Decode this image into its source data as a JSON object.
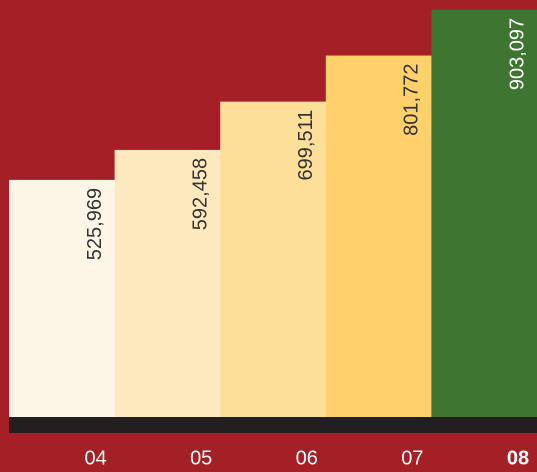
{
  "chart_data": {
    "type": "bar",
    "categories": [
      "04",
      "05",
      "06",
      "07",
      "08"
    ],
    "values": [
      525969,
      592458,
      699511,
      801772,
      903097
    ],
    "value_labels": [
      "525,969",
      "592,458",
      "699,511",
      "801,772",
      "903,097"
    ],
    "colors": [
      "#fdf6e7",
      "#fee9bf",
      "#fddf99",
      "#fed16b",
      "#3e7530"
    ],
    "ylim": [
      0,
      925000
    ]
  }
}
